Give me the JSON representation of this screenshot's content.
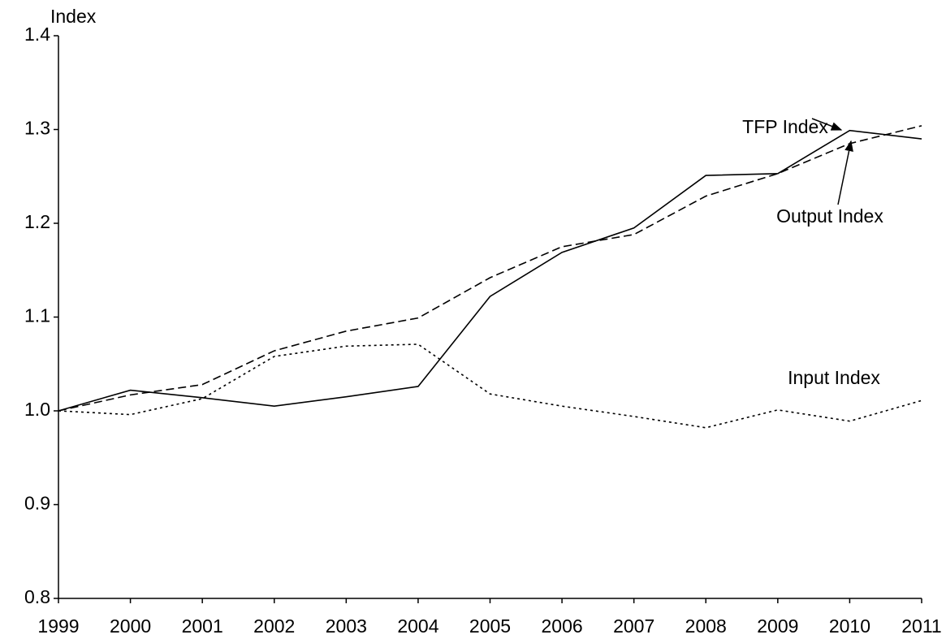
{
  "chart_data": {
    "type": "line",
    "y_label": "Index",
    "x": [
      1999,
      2000,
      2001,
      2002,
      2003,
      2004,
      2005,
      2006,
      2007,
      2008,
      2009,
      2010,
      2011
    ],
    "xlim": [
      1999,
      2011
    ],
    "xticks": [
      1999,
      2000,
      2001,
      2002,
      2003,
      2004,
      2005,
      2006,
      2007,
      2008,
      2009,
      2010,
      2011
    ],
    "ylim": [
      0.8,
      1.4
    ],
    "yticks": [
      {
        "value": 0.8,
        "label": "0.8"
      },
      {
        "value": 0.9,
        "label": "0.9"
      },
      {
        "value": 1.0,
        "label": "1.0"
      },
      {
        "value": 1.1,
        "label": "1.1"
      },
      {
        "value": 1.2,
        "label": "1.2"
      },
      {
        "value": 1.3,
        "label": "1.3"
      },
      {
        "value": 1.4,
        "label": "1.4"
      }
    ],
    "grid": false,
    "series": [
      {
        "name": "TFP Index",
        "color": "#000000",
        "dash": "solid",
        "values": [
          1.0,
          1.022,
          1.014,
          1.005,
          1.015,
          1.026,
          1.122,
          1.169,
          1.195,
          1.251,
          1.253,
          1.299,
          1.29
        ]
      },
      {
        "name": "Output Index",
        "color": "#000000",
        "dash": "dashed",
        "values": [
          1.0,
          1.017,
          1.028,
          1.064,
          1.085,
          1.099,
          1.142,
          1.175,
          1.188,
          1.229,
          1.253,
          1.285,
          1.304
        ]
      },
      {
        "name": "Input Index",
        "color": "#000000",
        "dash": "dotted",
        "values": [
          1.0,
          0.996,
          1.013,
          1.058,
          1.069,
          1.071,
          1.018,
          1.005,
          0.994,
          0.982,
          1.001,
          0.989,
          1.011
        ]
      }
    ]
  }
}
